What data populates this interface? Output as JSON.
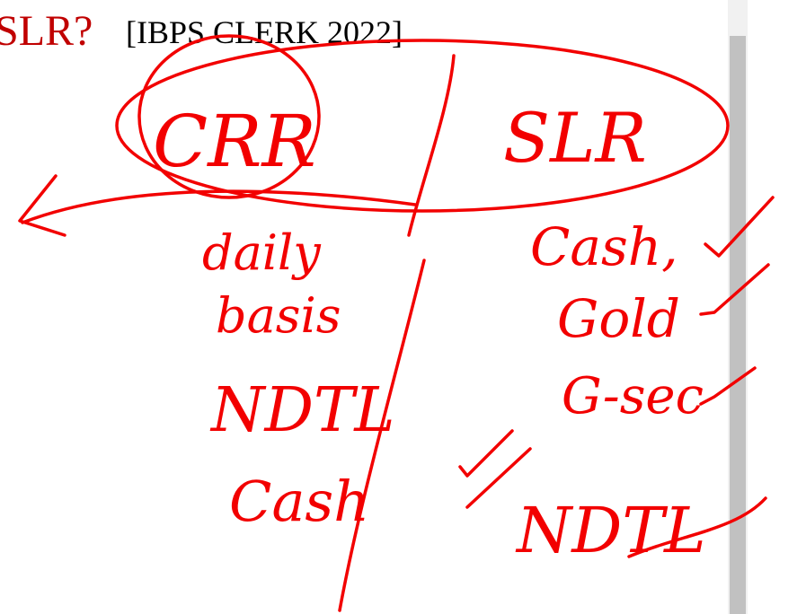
{
  "header": {
    "term": "SLR?",
    "source": "[IBPS CLERK 2022]"
  },
  "notes": {
    "left": [
      "CRR",
      "daily",
      "basis",
      "NDTL",
      "Cash"
    ],
    "right": [
      "SLR",
      "Cash,",
      "Gold",
      "G-sec",
      "NDTL"
    ]
  }
}
